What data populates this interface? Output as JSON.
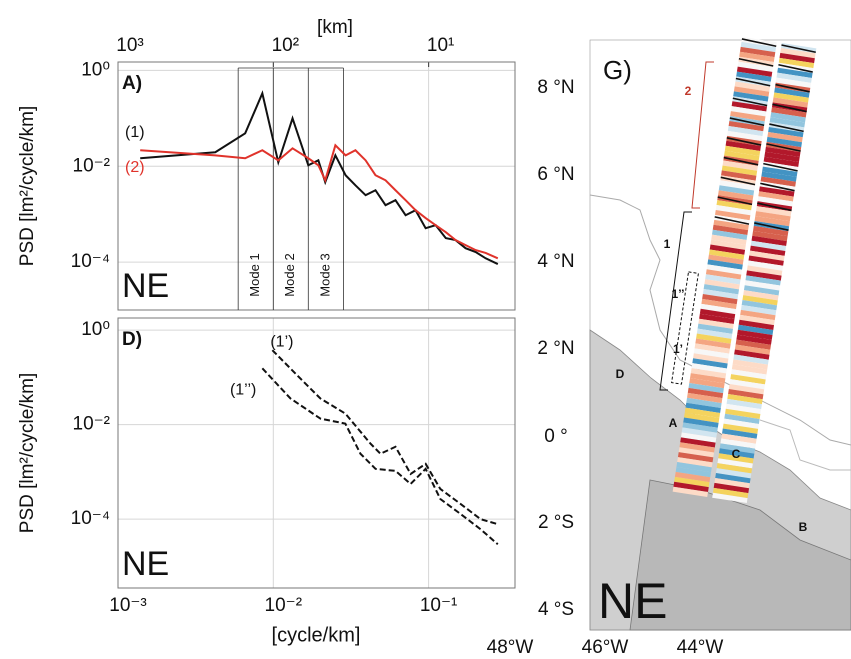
{
  "chart_data": [
    {
      "type": "line",
      "title": "A)",
      "region": "NE",
      "ylabel": "PSD [lm²/cycle/km]",
      "x2label": "[km]",
      "xscale": "log",
      "yscale": "log",
      "grid": true,
      "legend": "left",
      "xlim": [
        0.001,
        0.36
      ],
      "ylim": [
        1e-05,
        1.5
      ],
      "xticks": [
        0.01,
        0.1
      ],
      "x2lim": [
        1000,
        2.78
      ],
      "x2ticks": [
        {
          "value": 1000,
          "label": "10³"
        },
        {
          "value": 100,
          "label": "10²"
        },
        {
          "value": 10,
          "label": "10¹"
        }
      ],
      "yticks": [
        {
          "value": 1,
          "label": "10⁰"
        },
        {
          "value": 0.01,
          "label": "10⁻²"
        },
        {
          "value": 0.0001,
          "label": "10⁻⁴"
        }
      ],
      "modes": [
        "Mode 1",
        "Mode 2",
        "Mode 3"
      ],
      "mode_bounds": [
        0.00594,
        0.01,
        0.0168,
        0.0283
      ],
      "series": [
        {
          "name": "(1)",
          "color": "#111111",
          "line_style": "solid",
          "x": [
            0.00139,
            0.00423,
            0.00659,
            0.0085,
            0.01077,
            0.0133,
            0.0168,
            0.0195,
            0.0216,
            0.0251,
            0.0292,
            0.0338,
            0.0393,
            0.0455,
            0.0528,
            0.0612,
            0.0711,
            0.0824,
            0.0957,
            0.111,
            0.129,
            0.149,
            0.173,
            0.201,
            0.233,
            0.279
          ],
          "values": [
            0.0147,
            0.0196,
            0.0487,
            0.332,
            0.0121,
            0.1,
            0.0105,
            0.0133,
            0.00464,
            0.0169,
            0.0065,
            0.004,
            0.00249,
            0.00316,
            0.00154,
            0.00196,
            0.00095,
            0.00121,
            0.00051,
            0.00059,
            0.000316,
            0.000288,
            0.000195,
            0.000162,
            0.00012,
            9.1e-05
          ]
        },
        {
          "name": "(2)",
          "color": "#e0332b",
          "line_style": "solid",
          "x": [
            0.00139,
            0.00423,
            0.00659,
            0.0085,
            0.01077,
            0.0133,
            0.0168,
            0.0195,
            0.0216,
            0.0251,
            0.0292,
            0.0338,
            0.0393,
            0.0455,
            0.0528,
            0.0612,
            0.0711,
            0.0824,
            0.0957,
            0.111,
            0.129,
            0.149,
            0.173,
            0.201,
            0.233,
            0.279
          ],
          "values": [
            0.0216,
            0.0169,
            0.0147,
            0.0216,
            0.0133,
            0.0237,
            0.0147,
            0.0105,
            0.0051,
            0.0274,
            0.0169,
            0.0216,
            0.0133,
            0.0065,
            0.0051,
            0.00316,
            0.00196,
            0.00121,
            0.00083,
            0.00059,
            0.00042,
            0.000288,
            0.000226,
            0.000178,
            0.000155,
            0.00012
          ]
        }
      ]
    },
    {
      "type": "line",
      "title": "D)",
      "region": "NE",
      "ylabel": "PSD [lm²/cycle/km]",
      "xlabel": "[cycle/km]",
      "xscale": "log",
      "yscale": "log",
      "grid": true,
      "legend": "inline",
      "xlim": [
        0.001,
        0.36
      ],
      "ylim": [
        3.5e-06,
        1.8
      ],
      "xticks": [
        {
          "value": 0.001,
          "label": "10⁻³"
        },
        {
          "value": 0.01,
          "label": "10⁻²"
        },
        {
          "value": 0.1,
          "label": "10⁻¹"
        }
      ],
      "yticks": [
        {
          "value": 1,
          "label": "10⁰"
        },
        {
          "value": 0.01,
          "label": "10⁻²"
        },
        {
          "value": 0.0001,
          "label": "10⁻⁴"
        }
      ],
      "series": [
        {
          "name": "(1’)",
          "color": "#111111",
          "line_style": "dashed",
          "x": [
            0.00986,
            0.0149,
            0.0201,
            0.0291,
            0.0423,
            0.049,
            0.0612,
            0.0766,
            0.0957,
            0.119,
            0.161,
            0.216,
            0.279
          ],
          "values": [
            0.375,
            0.0953,
            0.0357,
            0.0171,
            0.00394,
            0.00242,
            0.0034,
            0.000906,
            0.00148,
            0.000435,
            0.000209,
            0.0001,
            7.83e-05
          ]
        },
        {
          "name": "(1’’)",
          "color": "#111111",
          "line_style": "dashed",
          "x": [
            0.0085,
            0.0129,
            0.0201,
            0.0291,
            0.0364,
            0.0455,
            0.0612,
            0.0766,
            0.0957,
            0.119,
            0.161,
            0.216,
            0.279
          ],
          "values": [
            0.155,
            0.0357,
            0.0134,
            0.0105,
            0.00242,
            0.00116,
            0.00105,
            0.000556,
            0.00116,
            0.000267,
            0.000128,
            6.12e-05,
            2.94e-05
          ]
        }
      ]
    }
  ],
  "map": {
    "title": "G)",
    "region": "NE",
    "lat_labels": [
      "8 °N",
      "6 °N",
      "4 °N",
      "2 °N",
      "0 °",
      "2 °S",
      "4 °S"
    ],
    "lon_labels": [
      "48°W",
      "46°W",
      "44°W"
    ],
    "site_labels": [
      "A",
      "B",
      "C",
      "D"
    ],
    "segment_labels": [
      "2",
      "1",
      "1’’",
      "1’"
    ]
  }
}
